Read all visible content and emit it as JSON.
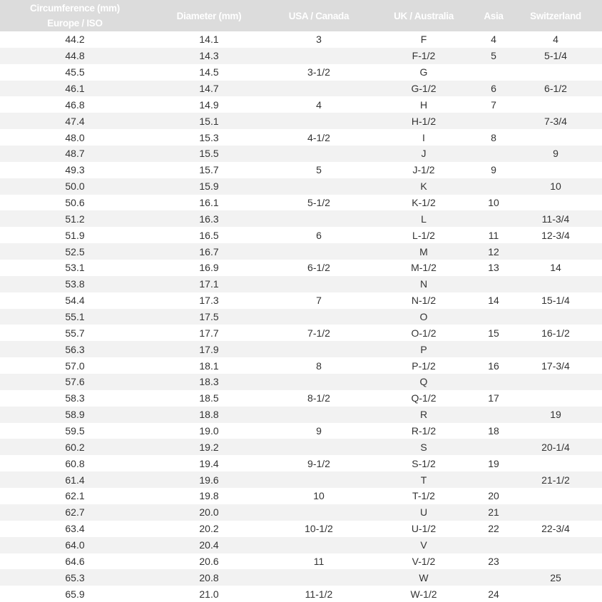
{
  "headers": [
    "Circumference (mm)\nEurope / ISO",
    "Diameter (mm)",
    "USA / Canada",
    "UK / Australia",
    "Asia",
    "Switzerland"
  ],
  "header_lines": {
    "c1a": "Circumference (mm)",
    "c1b": "Europe / ISO"
  },
  "colors": {
    "header_bg": "#dcdcdc",
    "header_text": "#ffffff",
    "row_alt": "#f2f2f2",
    "text": "#333333"
  },
  "rows": [
    [
      "44.2",
      "14.1",
      "3",
      "F",
      "4",
      "4"
    ],
    [
      "44.8",
      "14.3",
      "",
      "F-1/2",
      "5",
      "5-1/4"
    ],
    [
      "45.5",
      "14.5",
      "3-1/2",
      "G",
      "",
      ""
    ],
    [
      "46.1",
      "14.7",
      "",
      "G-1/2",
      "6",
      "6-1/2"
    ],
    [
      "46.8",
      "14.9",
      "4",
      "H",
      "7",
      ""
    ],
    [
      "47.4",
      "15.1",
      "",
      "H-1/2",
      "",
      "7-3/4"
    ],
    [
      "48.0",
      "15.3",
      "4-1/2",
      "I",
      "8",
      ""
    ],
    [
      "48.7",
      "15.5",
      "",
      "J",
      "",
      "9"
    ],
    [
      "49.3",
      "15.7",
      "5",
      "J-1/2",
      "9",
      ""
    ],
    [
      "50.0",
      "15.9",
      "",
      "K",
      "",
      "10"
    ],
    [
      "50.6",
      "16.1",
      "5-1/2",
      "K-1/2",
      "10",
      ""
    ],
    [
      "51.2",
      "16.3",
      "",
      "L",
      "",
      "11-3/4"
    ],
    [
      "51.9",
      "16.5",
      "6",
      "L-1/2",
      "11",
      "12-3/4"
    ],
    [
      "52.5",
      "16.7",
      "",
      "M",
      "12",
      ""
    ],
    [
      "53.1",
      "16.9",
      "6-1/2",
      "M-1/2",
      "13",
      "14"
    ],
    [
      "53.8",
      "17.1",
      "",
      "N",
      "",
      ""
    ],
    [
      "54.4",
      "17.3",
      "7",
      "N-1/2",
      "14",
      "15-1/4"
    ],
    [
      "55.1",
      "17.5",
      "",
      "O",
      "",
      ""
    ],
    [
      "55.7",
      "17.7",
      "7-1/2",
      "O-1/2",
      "15",
      "16-1/2"
    ],
    [
      "56.3",
      "17.9",
      "",
      "P",
      "",
      ""
    ],
    [
      "57.0",
      "18.1",
      "8",
      "P-1/2",
      "16",
      "17-3/4"
    ],
    [
      "57.6",
      "18.3",
      "",
      "Q",
      "",
      ""
    ],
    [
      "58.3",
      "18.5",
      "8-1/2",
      "Q-1/2",
      "17",
      ""
    ],
    [
      "58.9",
      "18.8",
      "",
      "R",
      "",
      "19"
    ],
    [
      "59.5",
      "19.0",
      "9",
      "R-1/2",
      "18",
      ""
    ],
    [
      "60.2",
      "19.2",
      "",
      "S",
      "",
      "20-1/4"
    ],
    [
      "60.8",
      "19.4",
      "9-1/2",
      "S-1/2",
      "19",
      ""
    ],
    [
      "61.4",
      "19.6",
      "",
      "T",
      "",
      "21-1/2"
    ],
    [
      "62.1",
      "19.8",
      "10",
      "T-1/2",
      "20",
      ""
    ],
    [
      "62.7",
      "20.0",
      "",
      "U",
      "21",
      ""
    ],
    [
      "63.4",
      "20.2",
      "10-1/2",
      "U-1/2",
      "22",
      "22-3/4"
    ],
    [
      "64.0",
      "20.4",
      "",
      "V",
      "",
      ""
    ],
    [
      "64.6",
      "20.6",
      "11",
      "V-1/2",
      "23",
      ""
    ],
    [
      "65.3",
      "20.8",
      "",
      "W",
      "",
      "25"
    ],
    [
      "65.9",
      "21.0",
      "11-1/2",
      "W-1/2",
      "24",
      ""
    ]
  ]
}
